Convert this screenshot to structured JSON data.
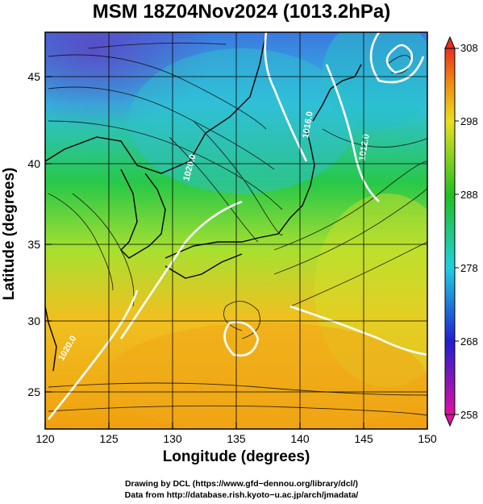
{
  "title": "MSM 18Z04Nov2024 (1013.2hPa)",
  "map": {
    "lon_range": [
      120,
      150
    ],
    "lat_range": [
      23,
      48
    ],
    "x_ticks": [
      "120",
      "125",
      "130",
      "135",
      "140",
      "145",
      "150"
    ],
    "y_ticks": [
      "25",
      "30",
      "35",
      "40",
      "45"
    ],
    "xlabel": "Longitude (degrees)",
    "ylabel": "Latitude  (degrees)",
    "isobar_labels": [
      "1016.0",
      "1012.0",
      "1020.0",
      "1020.0"
    ],
    "field": "temperature shaded with streamlines of wind and white isobars"
  },
  "colorbar": {
    "ticks": [
      "258",
      "268",
      "278",
      "288",
      "298",
      "308"
    ],
    "colors": [
      "#e010a0",
      "#2020d0",
      "#20d0e0",
      "#20c020",
      "#e8e020",
      "#f09010",
      "#e83020"
    ]
  },
  "credits": {
    "line1": "Drawing by DCL (https://www.gfd−dennou.org/library/dcl/)",
    "line2": "Data from http://database.rish.kyoto−u.ac.jp/arch/jmadata/"
  }
}
